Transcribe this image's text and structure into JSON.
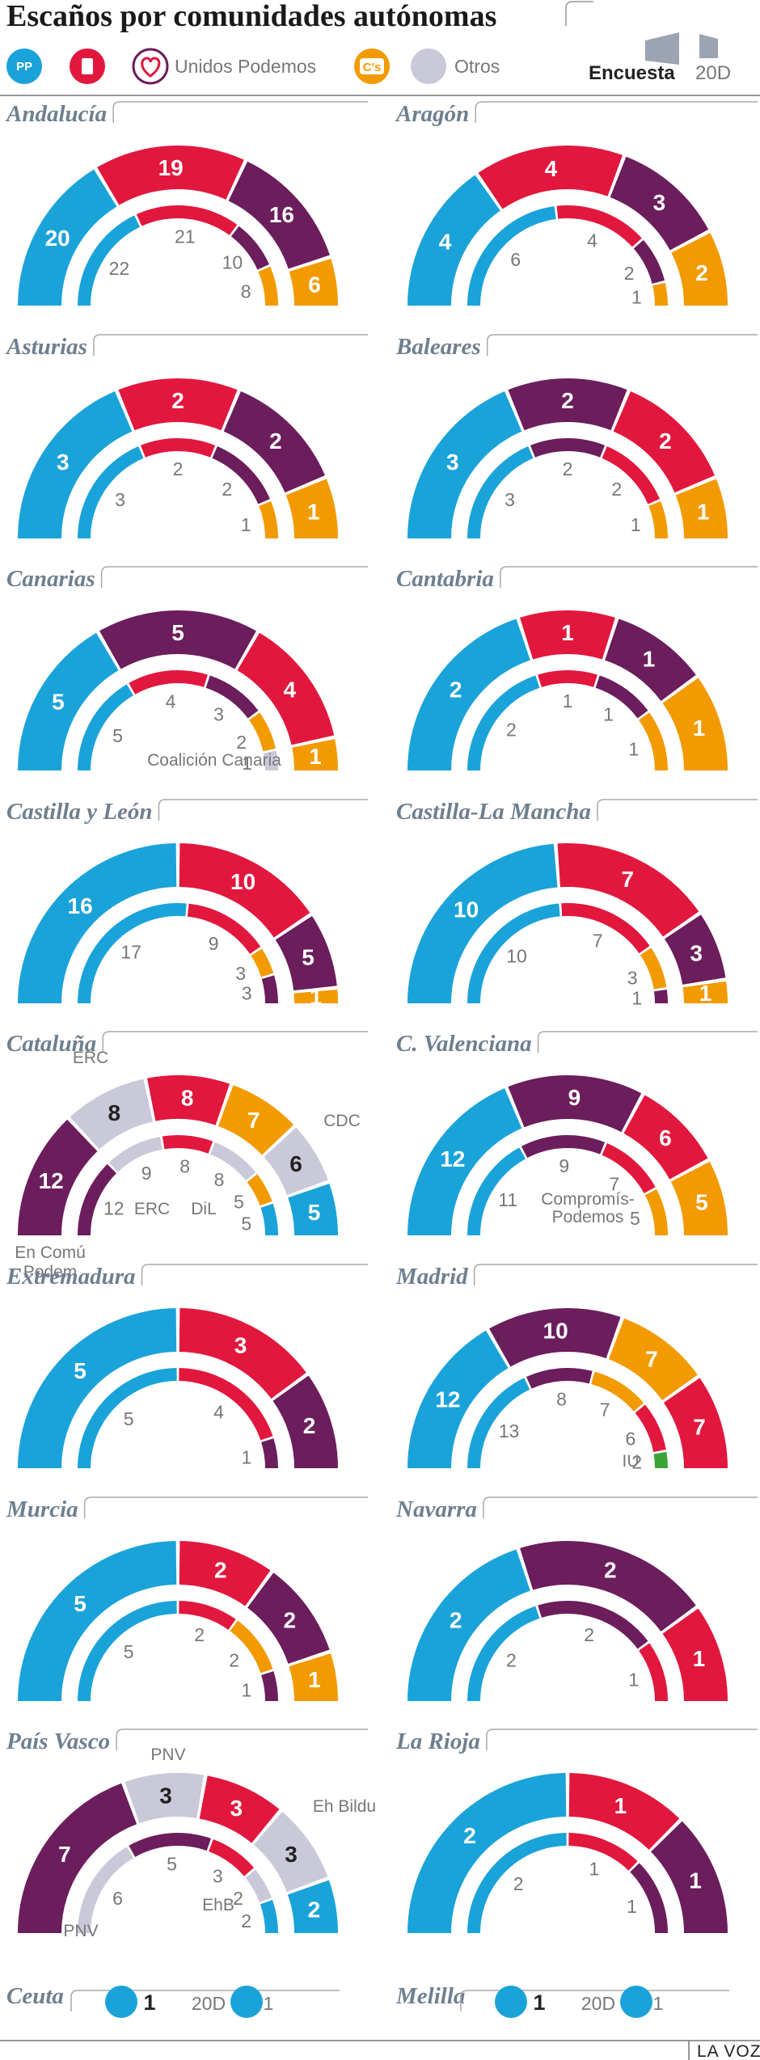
{
  "title": "Escaños por comunidades autónomas",
  "legend": {
    "pp_logo": "PP",
    "psoe_logo": "PSOE",
    "podemos_label": "Unidos Podemos",
    "cs_logo": "C's",
    "otros_label": "Otros",
    "encuesta_label": "Encuesta",
    "twentyd_label": "20D"
  },
  "colors": {
    "pp": "#1aa3d9",
    "psoe": "#e2173d",
    "up": "#6b1d5c",
    "cs": "#f29a00",
    "otros": "#c9c9d9",
    "iu": "#3aa535"
  },
  "chart_data": [
    {
      "name": "Andalucía",
      "type": "semi-donut",
      "outer": [
        {
          "party": "PP",
          "value": 20,
          "color": "pp"
        },
        {
          "party": "PSOE",
          "value": 19,
          "color": "psoe"
        },
        {
          "party": "Unidos Podemos",
          "value": 16,
          "color": "up"
        },
        {
          "party": "C's",
          "value": 6,
          "color": "cs"
        }
      ],
      "inner": [
        {
          "party": "PP",
          "value": 22,
          "color": "pp"
        },
        {
          "party": "PSOE",
          "value": 21,
          "color": "psoe"
        },
        {
          "party": "Unidos Podemos",
          "value": 10,
          "color": "up"
        },
        {
          "party": "C's",
          "value": 8,
          "color": "cs"
        }
      ]
    },
    {
      "name": "Aragón",
      "type": "semi-donut",
      "outer": [
        {
          "party": "PP",
          "value": 4,
          "color": "pp"
        },
        {
          "party": "PSOE",
          "value": 4,
          "color": "psoe"
        },
        {
          "party": "Unidos Podemos",
          "value": 3,
          "color": "up"
        },
        {
          "party": "C's",
          "value": 2,
          "color": "cs"
        }
      ],
      "inner": [
        {
          "party": "PP",
          "value": 6,
          "color": "pp"
        },
        {
          "party": "PSOE",
          "value": 4,
          "color": "psoe"
        },
        {
          "party": "Unidos Podemos",
          "value": 2,
          "color": "up"
        },
        {
          "party": "C's",
          "value": 1,
          "color": "cs"
        }
      ]
    },
    {
      "name": "Asturias",
      "type": "semi-donut",
      "outer": [
        {
          "party": "PP",
          "value": 3,
          "color": "pp"
        },
        {
          "party": "PSOE",
          "value": 2,
          "color": "psoe"
        },
        {
          "party": "Unidos Podemos",
          "value": 2,
          "color": "up"
        },
        {
          "party": "C's",
          "value": 1,
          "color": "cs"
        }
      ],
      "inner": [
        {
          "party": "PP",
          "value": 3,
          "color": "pp"
        },
        {
          "party": "PSOE",
          "value": 2,
          "color": "psoe"
        },
        {
          "party": "Unidos Podemos",
          "value": 2,
          "color": "up"
        },
        {
          "party": "C's",
          "value": 1,
          "color": "cs"
        }
      ]
    },
    {
      "name": "Baleares",
      "type": "semi-donut",
      "outer": [
        {
          "party": "PP",
          "value": 3,
          "color": "pp"
        },
        {
          "party": "Unidos Podemos",
          "value": 2,
          "color": "up"
        },
        {
          "party": "PSOE",
          "value": 2,
          "color": "psoe"
        },
        {
          "party": "C's",
          "value": 1,
          "color": "cs"
        }
      ],
      "inner": [
        {
          "party": "PP",
          "value": 3,
          "color": "pp"
        },
        {
          "party": "Unidos Podemos",
          "value": 2,
          "color": "up"
        },
        {
          "party": "PSOE",
          "value": 2,
          "color": "psoe"
        },
        {
          "party": "C's",
          "value": 1,
          "color": "cs"
        }
      ]
    },
    {
      "name": "Canarias",
      "type": "semi-donut",
      "outer": [
        {
          "party": "PP",
          "value": 5,
          "color": "pp"
        },
        {
          "party": "Unidos Podemos",
          "value": 5,
          "color": "up"
        },
        {
          "party": "PSOE",
          "value": 4,
          "color": "psoe"
        },
        {
          "party": "C's",
          "value": 1,
          "color": "cs"
        }
      ],
      "inner": [
        {
          "party": "PP",
          "value": 5,
          "color": "pp"
        },
        {
          "party": "PSOE",
          "value": 4,
          "color": "psoe"
        },
        {
          "party": "Unidos Podemos",
          "value": 3,
          "color": "up"
        },
        {
          "party": "C's",
          "value": 2,
          "color": "cs"
        },
        {
          "party": "Coalición Canaria",
          "value": 1,
          "color": "otros"
        }
      ],
      "note": "Coalición Canaria"
    },
    {
      "name": "Cantabria",
      "type": "semi-donut",
      "outer": [
        {
          "party": "PP",
          "value": 2,
          "color": "pp"
        },
        {
          "party": "PSOE",
          "value": 1,
          "color": "psoe"
        },
        {
          "party": "Unidos Podemos",
          "value": 1,
          "color": "up"
        },
        {
          "party": "C's",
          "value": 1,
          "color": "cs"
        }
      ],
      "inner": [
        {
          "party": "PP",
          "value": 2,
          "color": "pp"
        },
        {
          "party": "PSOE",
          "value": 1,
          "color": "psoe"
        },
        {
          "party": "Unidos Podemos",
          "value": 1,
          "color": "up"
        },
        {
          "party": "C's",
          "value": 1,
          "color": "cs"
        }
      ]
    },
    {
      "name": "Castilla y León",
      "type": "semi-donut",
      "outer": [
        {
          "party": "PP",
          "value": 16,
          "color": "pp"
        },
        {
          "party": "PSOE",
          "value": 10,
          "color": "psoe"
        },
        {
          "party": "Unidos Podemos",
          "value": 5,
          "color": "up"
        },
        {
          "party": "C's",
          "value": 1,
          "color": "cs"
        }
      ],
      "inner": [
        {
          "party": "PP",
          "value": 17,
          "color": "pp"
        },
        {
          "party": "PSOE",
          "value": 9,
          "color": "psoe"
        },
        {
          "party": "C's",
          "value": 3,
          "color": "cs"
        },
        {
          "party": "Unidos Podemos",
          "value": 3,
          "color": "up"
        }
      ]
    },
    {
      "name": "Castilla-La Mancha",
      "type": "semi-donut",
      "outer": [
        {
          "party": "PP",
          "value": 10,
          "color": "pp"
        },
        {
          "party": "PSOE",
          "value": 7,
          "color": "psoe"
        },
        {
          "party": "Unidos Podemos",
          "value": 3,
          "color": "up"
        },
        {
          "party": "C's",
          "value": 1,
          "color": "cs"
        }
      ],
      "inner": [
        {
          "party": "PP",
          "value": 10,
          "color": "pp"
        },
        {
          "party": "PSOE",
          "value": 7,
          "color": "psoe"
        },
        {
          "party": "C's",
          "value": 3,
          "color": "cs"
        },
        {
          "party": "Unidos Podemos",
          "value": 1,
          "color": "up"
        }
      ]
    },
    {
      "name": "Cataluña",
      "type": "semi-donut",
      "outer": [
        {
          "party": "En Comú Podem",
          "value": 12,
          "color": "up"
        },
        {
          "party": "ERC",
          "value": 8,
          "color": "otros"
        },
        {
          "party": "PSOE",
          "value": 8,
          "color": "psoe"
        },
        {
          "party": "C's",
          "value": 7,
          "color": "cs"
        },
        {
          "party": "CDC",
          "value": 6,
          "color": "otros"
        },
        {
          "party": "PP",
          "value": 5,
          "color": "pp"
        }
      ],
      "inner": [
        {
          "party": "En Comú Podem",
          "value": 12,
          "color": "up"
        },
        {
          "party": "ERC",
          "value": 9,
          "color": "otros"
        },
        {
          "party": "PSOE",
          "value": 8,
          "color": "psoe"
        },
        {
          "party": "DiL",
          "value": 8,
          "color": "otros"
        },
        {
          "party": "C's",
          "value": 5,
          "color": "cs"
        },
        {
          "party": "PP",
          "value": 5,
          "color": "pp"
        }
      ],
      "labels": {
        "erc_top": "ERC",
        "cdc": "CDC",
        "encomu_line1": "En Comú",
        "encomu_line2": "Podem",
        "erc_inner": "ERC",
        "dil_inner": "DiL"
      }
    },
    {
      "name": "C. Valenciana",
      "type": "semi-donut",
      "outer": [
        {
          "party": "PP",
          "value": 12,
          "color": "pp"
        },
        {
          "party": "Unidos Podemos",
          "value": 9,
          "color": "up"
        },
        {
          "party": "PSOE",
          "value": 6,
          "color": "psoe"
        },
        {
          "party": "C's",
          "value": 5,
          "color": "cs"
        }
      ],
      "inner": [
        {
          "party": "PP",
          "value": 11,
          "color": "pp"
        },
        {
          "party": "Compromís-Podemos",
          "value": 9,
          "color": "up"
        },
        {
          "party": "PSOE",
          "value": 7,
          "color": "psoe"
        },
        {
          "party": "C's",
          "value": 5,
          "color": "cs"
        }
      ],
      "labels": {
        "compromis_line1": "Compromís-",
        "compromis_line2": "Podemos"
      }
    },
    {
      "name": "Extremadura",
      "type": "semi-donut",
      "outer": [
        {
          "party": "PP",
          "value": 5,
          "color": "pp"
        },
        {
          "party": "PSOE",
          "value": 3,
          "color": "psoe"
        },
        {
          "party": "Unidos Podemos",
          "value": 2,
          "color": "up"
        }
      ],
      "inner": [
        {
          "party": "PP",
          "value": 5,
          "color": "pp"
        },
        {
          "party": "PSOE",
          "value": 4,
          "color": "psoe"
        },
        {
          "party": "Unidos Podemos",
          "value": 1,
          "color": "up"
        }
      ]
    },
    {
      "name": "Madrid",
      "type": "semi-donut",
      "outer": [
        {
          "party": "PP",
          "value": 12,
          "color": "pp"
        },
        {
          "party": "Unidos Podemos",
          "value": 10,
          "color": "up"
        },
        {
          "party": "C's",
          "value": 7,
          "color": "cs"
        },
        {
          "party": "PSOE",
          "value": 7,
          "color": "psoe"
        }
      ],
      "inner": [
        {
          "party": "PP",
          "value": 13,
          "color": "pp"
        },
        {
          "party": "Podemos",
          "value": 8,
          "color": "up"
        },
        {
          "party": "C's",
          "value": 7,
          "color": "cs"
        },
        {
          "party": "PSOE",
          "value": 6,
          "color": "psoe"
        },
        {
          "party": "IU",
          "value": 2,
          "color": "iu"
        }
      ],
      "labels": {
        "iu": "IU"
      }
    },
    {
      "name": "Murcia",
      "type": "semi-donut",
      "outer": [
        {
          "party": "PP",
          "value": 5,
          "color": "pp"
        },
        {
          "party": "PSOE",
          "value": 2,
          "color": "psoe"
        },
        {
          "party": "Unidos Podemos",
          "value": 2,
          "color": "up"
        },
        {
          "party": "C's",
          "value": 1,
          "color": "cs"
        }
      ],
      "inner": [
        {
          "party": "PP",
          "value": 5,
          "color": "pp"
        },
        {
          "party": "PSOE",
          "value": 2,
          "color": "psoe"
        },
        {
          "party": "C's",
          "value": 2,
          "color": "cs"
        },
        {
          "party": "Unidos Podemos",
          "value": 1,
          "color": "up"
        }
      ]
    },
    {
      "name": "Navarra",
      "type": "semi-donut",
      "outer": [
        {
          "party": "PP",
          "value": 2,
          "color": "pp"
        },
        {
          "party": "Unidos Podemos",
          "value": 2,
          "color": "up"
        },
        {
          "party": "PSOE",
          "value": 1,
          "color": "psoe"
        }
      ],
      "inner": [
        {
          "party": "PP",
          "value": 2,
          "color": "pp"
        },
        {
          "party": "Unidos Podemos",
          "value": 2,
          "color": "up"
        },
        {
          "party": "PSOE",
          "value": 1,
          "color": "psoe"
        }
      ]
    },
    {
      "name": "País Vasco",
      "type": "semi-donut",
      "outer": [
        {
          "party": "Unidos Podemos",
          "value": 7,
          "color": "up"
        },
        {
          "party": "PNV",
          "value": 3,
          "color": "otros"
        },
        {
          "party": "PSOE",
          "value": 3,
          "color": "psoe"
        },
        {
          "party": "Eh Bildu",
          "value": 3,
          "color": "otros"
        },
        {
          "party": "PP",
          "value": 2,
          "color": "pp"
        }
      ],
      "inner": [
        {
          "party": "PNV",
          "value": 6,
          "color": "otros"
        },
        {
          "party": "Unidos Podemos",
          "value": 5,
          "color": "up"
        },
        {
          "party": "PSOE",
          "value": 3,
          "color": "psoe"
        },
        {
          "party": "EhB",
          "value": 2,
          "color": "otros"
        },
        {
          "party": "PP",
          "value": 2,
          "color": "pp"
        }
      ],
      "labels": {
        "pnv_top": "PNV",
        "ehbildu": "Eh Bildu",
        "pnv_inner": "PNV",
        "ehb_inner": "EhB"
      }
    },
    {
      "name": "La Rioja",
      "type": "semi-donut",
      "outer": [
        {
          "party": "PP",
          "value": 2,
          "color": "pp"
        },
        {
          "party": "PSOE",
          "value": 1,
          "color": "psoe"
        },
        {
          "party": "Unidos Podemos",
          "value": 1,
          "color": "up"
        }
      ],
      "inner": [
        {
          "party": "PP",
          "value": 2,
          "color": "pp"
        },
        {
          "party": "PSOE",
          "value": 1,
          "color": "psoe"
        },
        {
          "party": "Unidos Podemos",
          "value": 1,
          "color": "up"
        }
      ]
    },
    {
      "name": "Ceuta",
      "type": "single-seat",
      "encuesta": {
        "party": "PP",
        "value": 1
      },
      "twentyd": {
        "party": "PP",
        "value": 1
      }
    },
    {
      "name": "Melilla",
      "type": "single-seat",
      "encuesta": {
        "party": "PP",
        "value": 1
      },
      "twentyd": {
        "party": "PP",
        "value": 1
      }
    }
  ],
  "footer": {
    "brand": "LA VOZ"
  }
}
